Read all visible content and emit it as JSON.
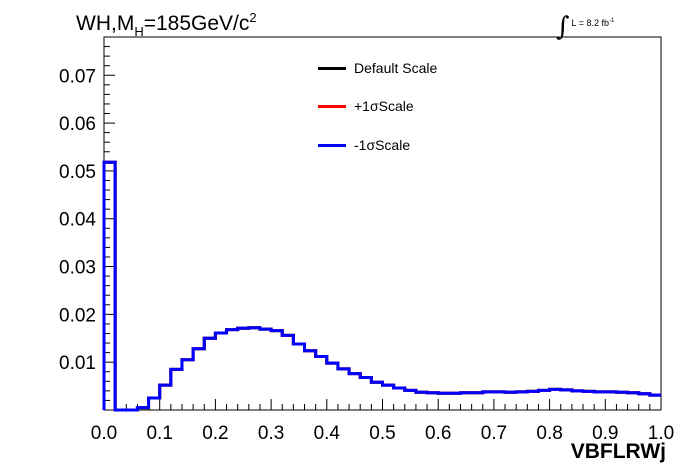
{
  "title": {
    "prefix": "WH,M",
    "sub": "H",
    "suffix": "=185GeV/c",
    "sup": "2"
  },
  "lumi": {
    "integral": "∫",
    "text": "L = 8.2 fb",
    "sup": "-1"
  },
  "legend": [
    {
      "label": "Default Scale",
      "color": "#000000"
    },
    {
      "label": "+1σScale",
      "color": "#ff0000"
    },
    {
      "label": "-1σScale",
      "color": "#0000ff"
    }
  ],
  "chart_data": {
    "type": "line",
    "title": "WH,M_H=185GeV/c^2",
    "xlabel": "VBFLRWj",
    "ylabel": "",
    "xlim": [
      0.0,
      1.0
    ],
    "ylim": [
      0.0,
      0.078
    ],
    "xticks": [
      0.0,
      0.1,
      0.2,
      0.3,
      0.4,
      0.5,
      0.6,
      0.7,
      0.8,
      0.9,
      1.0
    ],
    "xtick_labels": [
      "0.0",
      "0.1",
      "0.2",
      "0.3",
      "0.4",
      "0.5",
      "0.6",
      "0.7",
      "0.8",
      "0.9",
      "1.0"
    ],
    "yticks": [
      0.01,
      0.02,
      0.03,
      0.04,
      0.05,
      0.06,
      0.07
    ],
    "ytick_labels": [
      "0.01",
      "0.02",
      "0.03",
      "0.04",
      "0.05",
      "0.06",
      "0.07"
    ],
    "bin_edges": [
      0.0,
      0.02,
      0.04,
      0.06,
      0.08,
      0.1,
      0.12,
      0.14,
      0.16,
      0.18,
      0.2,
      0.22,
      0.24,
      0.26,
      0.28,
      0.3,
      0.32,
      0.34,
      0.36,
      0.38,
      0.4,
      0.42,
      0.44,
      0.46,
      0.48,
      0.5,
      0.52,
      0.54,
      0.56,
      0.58,
      0.6,
      0.62,
      0.64,
      0.66,
      0.68,
      0.7,
      0.72,
      0.74,
      0.76,
      0.78,
      0.8,
      0.82,
      0.84,
      0.86,
      0.88,
      0.9,
      0.92,
      0.94,
      0.96,
      0.98,
      1.0
    ],
    "series": [
      {
        "name": "Default Scale",
        "color": "#000000",
        "values": [
          0.0518,
          0.0,
          0.0,
          0.0005,
          0.0025,
          0.0052,
          0.0085,
          0.0105,
          0.0128,
          0.015,
          0.0161,
          0.0168,
          0.0171,
          0.0172,
          0.0169,
          0.0166,
          0.0156,
          0.0138,
          0.0124,
          0.0112,
          0.0098,
          0.0086,
          0.0076,
          0.0068,
          0.0058,
          0.0052,
          0.0046,
          0.0041,
          0.0037,
          0.0036,
          0.0035,
          0.0035,
          0.0036,
          0.0036,
          0.0038,
          0.0038,
          0.0037,
          0.0038,
          0.0039,
          0.0041,
          0.0043,
          0.0042,
          0.004,
          0.0039,
          0.0038,
          0.0038,
          0.0037,
          0.0036,
          0.0034,
          0.0031
        ]
      },
      {
        "name": "+1σScale",
        "color": "#ff0000",
        "values": [
          0.0518,
          0.0,
          0.0,
          0.0005,
          0.0025,
          0.0052,
          0.0085,
          0.0105,
          0.0128,
          0.015,
          0.0161,
          0.0168,
          0.0171,
          0.0172,
          0.0169,
          0.0166,
          0.0156,
          0.0138,
          0.0124,
          0.0112,
          0.0098,
          0.0086,
          0.0076,
          0.0068,
          0.0058,
          0.0052,
          0.0046,
          0.0041,
          0.0037,
          0.0036,
          0.0035,
          0.0035,
          0.0036,
          0.0036,
          0.0038,
          0.0038,
          0.0037,
          0.0038,
          0.0039,
          0.0041,
          0.0043,
          0.0042,
          0.004,
          0.0039,
          0.0038,
          0.0038,
          0.0037,
          0.0036,
          0.0034,
          0.0031
        ]
      },
      {
        "name": "-1σScale",
        "color": "#0000ff",
        "values": [
          0.0518,
          0.0,
          0.0,
          0.0005,
          0.0025,
          0.0052,
          0.0085,
          0.0105,
          0.0128,
          0.015,
          0.0161,
          0.0168,
          0.0171,
          0.0172,
          0.0169,
          0.0166,
          0.0156,
          0.0138,
          0.0124,
          0.0112,
          0.0098,
          0.0086,
          0.0076,
          0.0068,
          0.0058,
          0.0052,
          0.0046,
          0.0041,
          0.0037,
          0.0036,
          0.0035,
          0.0035,
          0.0036,
          0.0036,
          0.0038,
          0.0038,
          0.0037,
          0.0038,
          0.0039,
          0.0041,
          0.0043,
          0.0042,
          0.004,
          0.0039,
          0.0038,
          0.0038,
          0.0037,
          0.0036,
          0.0034,
          0.0031
        ]
      }
    ],
    "grid": false,
    "legend_position": "top-center"
  }
}
